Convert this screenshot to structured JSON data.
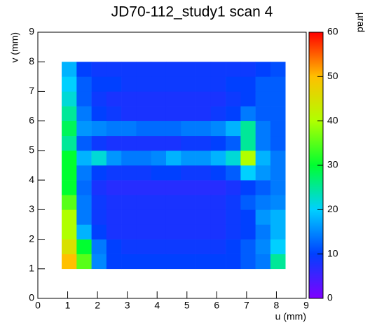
{
  "chart_data": {
    "type": "heatmap",
    "title": "JD70-112_study1 scan 4",
    "x_label": "u (mm)",
    "y_label": "v (mm)",
    "z_label": "µrad",
    "x_bins": [
      0.8,
      1.3,
      1.8,
      2.3,
      2.8,
      3.3,
      3.8,
      4.3,
      4.8,
      5.3,
      5.8,
      6.3,
      6.8,
      7.3,
      7.8,
      8.3
    ],
    "y_bins": [
      1.0,
      1.5,
      2.0,
      2.5,
      3.0,
      3.5,
      4.0,
      4.5,
      5.0,
      5.5,
      6.0,
      6.5,
      7.0,
      7.5,
      8.0
    ],
    "z": [
      [
        50,
        35,
        15,
        10,
        10,
        10,
        10,
        10,
        10,
        10,
        10,
        10,
        12,
        14,
        25
      ],
      [
        45,
        30,
        14,
        10,
        9,
        9,
        9,
        9,
        9,
        9,
        9,
        10,
        12,
        15,
        20
      ],
      [
        40,
        18,
        10,
        8,
        8,
        8,
        8,
        8,
        8,
        8,
        8,
        9,
        10,
        14,
        18
      ],
      [
        40,
        14,
        9,
        8,
        8,
        8,
        8,
        8,
        8,
        8,
        8,
        9,
        10,
        16,
        18
      ],
      [
        35,
        14,
        9,
        8,
        8,
        8,
        8,
        8,
        8,
        8,
        8,
        9,
        12,
        14,
        15
      ],
      [
        30,
        13,
        8,
        7,
        7,
        7,
        7,
        7,
        7,
        7,
        7,
        8,
        10,
        12,
        14
      ],
      [
        30,
        14,
        10,
        9,
        9,
        9,
        10,
        10,
        9,
        9,
        10,
        12,
        20,
        16,
        14
      ],
      [
        30,
        18,
        22,
        16,
        14,
        14,
        15,
        18,
        16,
        16,
        18,
        22,
        40,
        18,
        14
      ],
      [
        25,
        12,
        9,
        8,
        8,
        8,
        8,
        8,
        9,
        9,
        10,
        12,
        25,
        14,
        12
      ],
      [
        28,
        16,
        15,
        14,
        14,
        13,
        13,
        13,
        14,
        14,
        15,
        18,
        25,
        14,
        12
      ],
      [
        25,
        14,
        10,
        9,
        8,
        8,
        8,
        8,
        8,
        8,
        9,
        10,
        14,
        12,
        12
      ],
      [
        22,
        12,
        9,
        8,
        8,
        8,
        8,
        8,
        8,
        8,
        8,
        9,
        10,
        12,
        12
      ],
      [
        20,
        12,
        10,
        10,
        9,
        9,
        9,
        9,
        9,
        9,
        9,
        10,
        10,
        12,
        12
      ],
      [
        18,
        10,
        9,
        9,
        9,
        9,
        9,
        9,
        9,
        9,
        9,
        9,
        9,
        10,
        11
      ]
    ],
    "xlim": [
      0,
      9
    ],
    "xticks": [
      0,
      1,
      2,
      3,
      4,
      5,
      6,
      7,
      8,
      9
    ],
    "ylim": [
      0,
      9
    ],
    "yticks": [
      0,
      1,
      2,
      3,
      4,
      5,
      6,
      7,
      8,
      9
    ],
    "zlim": [
      0,
      60
    ],
    "zticks": [
      0,
      10,
      20,
      30,
      40,
      50,
      60
    ],
    "colorscale": [
      "#7f00ff",
      "#0040ff",
      "#00d0ff",
      "#00ff30",
      "#b0ff00",
      "#ffc000",
      "#ff0000"
    ]
  }
}
